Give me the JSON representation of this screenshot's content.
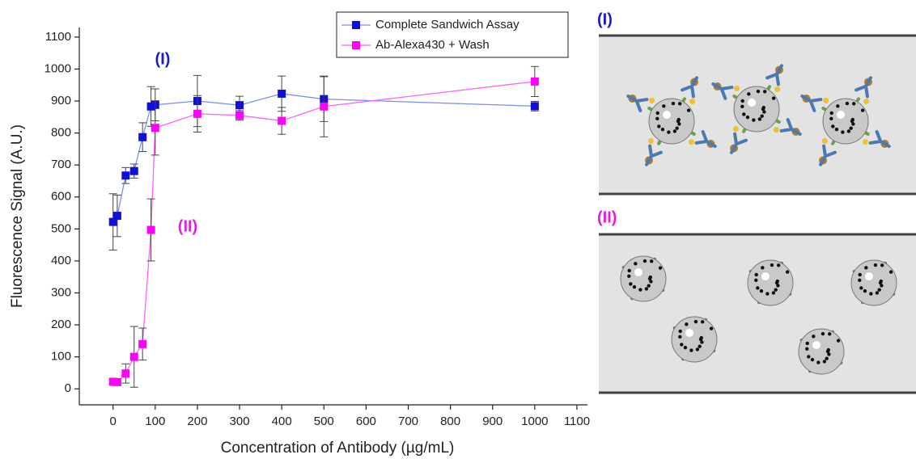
{
  "chart_data": {
    "type": "line",
    "x_label": "Concentration of Antibody (µg/mL)",
    "y_label": "Fluorescence Signal (A.U.)",
    "xlim": [
      -80,
      1125
    ],
    "xticks": [
      0,
      100,
      200,
      300,
      400,
      500,
      600,
      700,
      800,
      900,
      1000,
      1100
    ],
    "ylim": [
      -50,
      1130
    ],
    "yticks": [
      0,
      100,
      200,
      300,
      400,
      500,
      600,
      700,
      800,
      900,
      1000,
      1100
    ],
    "legend": "upper right",
    "series": [
      {
        "name": "Complete Sandwich Assay",
        "color": "#1010d8",
        "line_color": "#7b8ff0",
        "x": [
          0,
          10,
          30,
          50,
          70,
          90,
          100,
          200,
          300,
          400,
          500,
          1000
        ],
        "values": [
          522,
          541,
          667,
          681,
          787,
          883,
          888,
          900,
          887,
          923,
          906,
          884
        ],
        "errors": [
          88,
          65,
          25,
          22,
          45,
          62,
          50,
          80,
          28,
          55,
          70,
          15
        ]
      },
      {
        "name": "Ab-Alexa430 + Wash",
        "color": "#ff00ff",
        "line_color": "#ff60ff",
        "x": [
          0,
          10,
          30,
          50,
          70,
          90,
          100,
          200,
          300,
          400,
          500,
          1000
        ],
        "values": [
          22,
          21,
          48,
          100,
          140,
          497,
          816,
          860,
          855,
          838,
          883,
          961
        ],
        "errors": [
          5,
          5,
          30,
          95,
          50,
          97,
          85,
          57,
          15,
          42,
          95,
          47
        ]
      }
    ],
    "annotations": [
      {
        "text": "(I)",
        "color": "#1a1ad0"
      },
      {
        "text": "(II)",
        "color": "#e020e0"
      }
    ]
  },
  "diagram": {
    "panels": [
      {
        "label": "(I)",
        "color": "#1a1ad0"
      },
      {
        "label": "(II)",
        "color": "#e020e0"
      }
    ]
  }
}
